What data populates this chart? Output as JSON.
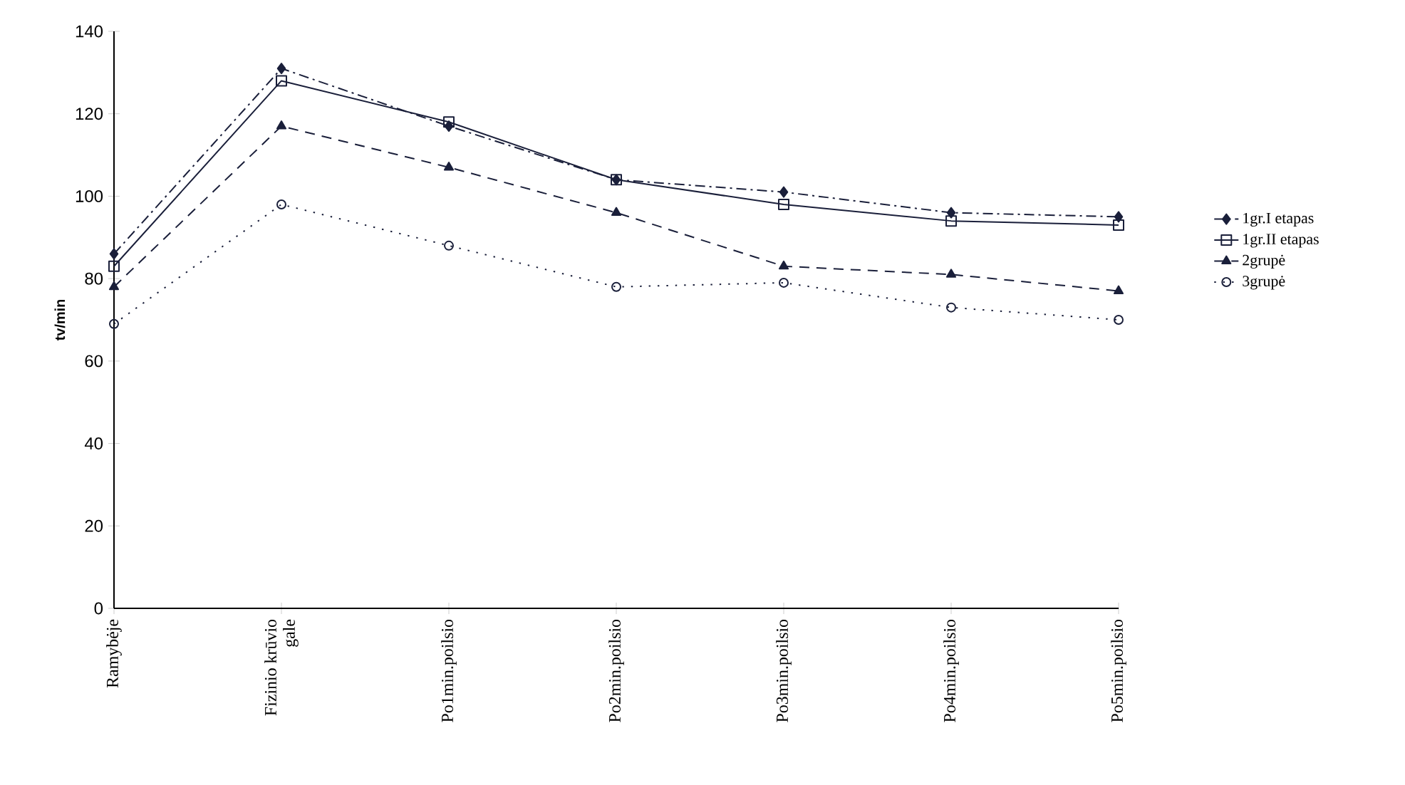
{
  "chart_data": {
    "type": "line",
    "ylabel": "tv/min",
    "categories": [
      "Ramybėje",
      "Fizinio krūvio gale",
      "Po1min.poilsio",
      "Po2min.poilsio",
      "Po3min.poilsio",
      "Po4min.poilsio",
      "Po5min.poilsio"
    ],
    "ylim": [
      0,
      140
    ],
    "yticks": [
      0,
      20,
      40,
      60,
      80,
      100,
      120,
      140
    ],
    "grid": false,
    "legend": "right",
    "series": [
      {
        "name": "1gr.I etapas",
        "color": "#1a1f3a",
        "marker": "diamond",
        "line_style": "dashdot",
        "values": [
          86,
          131,
          117,
          104,
          101,
          96,
          95
        ]
      },
      {
        "name": "1gr.II etapas",
        "color": "#1a1f3a",
        "marker": "square",
        "line_style": "solid",
        "values": [
          83,
          128,
          118,
          104,
          98,
          94,
          93
        ]
      },
      {
        "name": "2grupė",
        "color": "#1a1f3a",
        "marker": "triangle",
        "line_style": "dashed",
        "values": [
          78,
          117,
          107,
          96,
          83,
          81,
          77
        ]
      },
      {
        "name": "3grupė",
        "color": "#1a1f3a",
        "marker": "circle",
        "line_style": "dotted",
        "values": [
          69,
          98,
          88,
          78,
          79,
          73,
          70
        ]
      }
    ]
  }
}
